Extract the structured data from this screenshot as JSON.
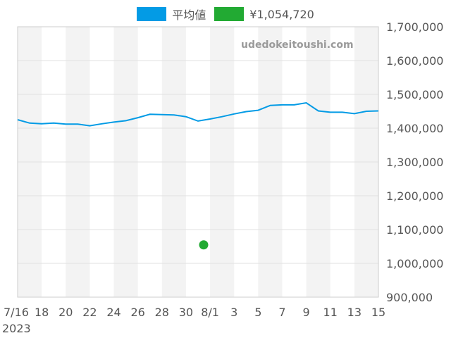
{
  "chart_data": {
    "type": "line",
    "watermark": "udedokeitoushi.com",
    "legend": [
      {
        "label": "平均値",
        "color": "#039be5"
      },
      {
        "label": "¥1,054,720",
        "color": "#22aa33"
      }
    ],
    "ylim": [
      900000,
      1700000
    ],
    "y_ticks": [
      "1,700,000",
      "1,600,000",
      "1,500,000",
      "1,400,000",
      "1,300,000",
      "1,200,000",
      "1,100,000",
      "1,000,000",
      "900,000"
    ],
    "x_tick_labels": [
      "7/16",
      "18",
      "20",
      "22",
      "24",
      "26",
      "28",
      "30",
      "8/1",
      "3",
      "5",
      "7",
      "9",
      "11",
      "13",
      "15"
    ],
    "x_year_label": "2023",
    "x": [
      "2023-07-16",
      "2023-07-17",
      "2023-07-18",
      "2023-07-19",
      "2023-07-20",
      "2023-07-21",
      "2023-07-22",
      "2023-07-23",
      "2023-07-24",
      "2023-07-25",
      "2023-07-26",
      "2023-07-27",
      "2023-07-28",
      "2023-07-29",
      "2023-07-30",
      "2023-07-31",
      "2023-08-01",
      "2023-08-02",
      "2023-08-03",
      "2023-08-04",
      "2023-08-05",
      "2023-08-06",
      "2023-08-07",
      "2023-08-08",
      "2023-08-09",
      "2023-08-10",
      "2023-08-11",
      "2023-08-12",
      "2023-08-13",
      "2023-08-14",
      "2023-08-15"
    ],
    "series": [
      {
        "name": "平均値",
        "color": "#039be5",
        "values": [
          1425000,
          1415000,
          1413000,
          1415000,
          1412000,
          1412000,
          1407000,
          1413000,
          1418000,
          1422000,
          1431000,
          1441000,
          1440000,
          1439000,
          1434000,
          1421000,
          1427000,
          1434000,
          1442000,
          1449000,
          1453000,
          1467000,
          1469000,
          1469000,
          1475000,
          1451000,
          1447000,
          1447000,
          1443000,
          1450000,
          1451000
        ]
      }
    ],
    "points": [
      {
        "name": "¥1,054,720",
        "color": "#22aa33",
        "x": "2023-07-31",
        "y": 1054720
      }
    ]
  }
}
